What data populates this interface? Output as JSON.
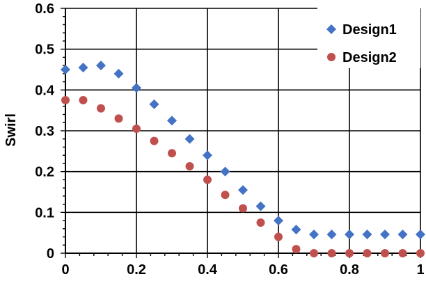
{
  "chart_data": {
    "type": "scatter",
    "title": "",
    "xlabel": "",
    "ylabel": "Swirl",
    "xlim": [
      0,
      1
    ],
    "ylim": [
      0,
      0.6
    ],
    "x_ticks": [
      0,
      0.2,
      0.4,
      0.6,
      0.8,
      1
    ],
    "x_tick_labels": [
      "0",
      "0.2",
      "0.4",
      "0.6",
      "0.8",
      "1"
    ],
    "y_ticks": [
      0,
      0.1,
      0.2,
      0.3,
      0.4,
      0.5,
      0.6
    ],
    "y_tick_labels": [
      "0",
      "0.1",
      "0.2",
      "0.3",
      "0.4",
      "0.5",
      "0.6"
    ],
    "grid": true,
    "legend_position": "top-right",
    "series": [
      {
        "name": "Design1",
        "marker": "diamond",
        "color": "#4472C4",
        "points": [
          [
            0,
            0.45
          ],
          [
            0.05,
            0.455
          ],
          [
            0.1,
            0.46
          ],
          [
            0.15,
            0.44
          ],
          [
            0.2,
            0.405
          ],
          [
            0.25,
            0.365
          ],
          [
            0.3,
            0.325
          ],
          [
            0.35,
            0.28
          ],
          [
            0.4,
            0.24
          ],
          [
            0.45,
            0.2
          ],
          [
            0.5,
            0.155
          ],
          [
            0.55,
            0.115
          ],
          [
            0.6,
            0.08
          ],
          [
            0.65,
            0.058
          ],
          [
            0.7,
            0.046
          ],
          [
            0.75,
            0.046
          ],
          [
            0.8,
            0.046
          ],
          [
            0.85,
            0.046
          ],
          [
            0.9,
            0.046
          ],
          [
            0.95,
            0.046
          ],
          [
            1,
            0.046
          ]
        ]
      },
      {
        "name": "Design2",
        "marker": "circle",
        "color": "#C0504D",
        "points": [
          [
            0,
            0.375
          ],
          [
            0.05,
            0.375
          ],
          [
            0.1,
            0.355
          ],
          [
            0.15,
            0.33
          ],
          [
            0.2,
            0.305
          ],
          [
            0.25,
            0.275
          ],
          [
            0.3,
            0.245
          ],
          [
            0.35,
            0.213
          ],
          [
            0.4,
            0.18
          ],
          [
            0.45,
            0.143
          ],
          [
            0.5,
            0.11
          ],
          [
            0.55,
            0.075
          ],
          [
            0.6,
            0.04
          ],
          [
            0.65,
            0.01
          ],
          [
            0.7,
            0.0
          ],
          [
            0.75,
            0.0
          ],
          [
            0.8,
            0.0
          ],
          [
            0.85,
            0.0
          ],
          [
            0.9,
            0.0
          ],
          [
            0.95,
            0.0
          ],
          [
            1,
            0.0
          ]
        ]
      }
    ]
  }
}
